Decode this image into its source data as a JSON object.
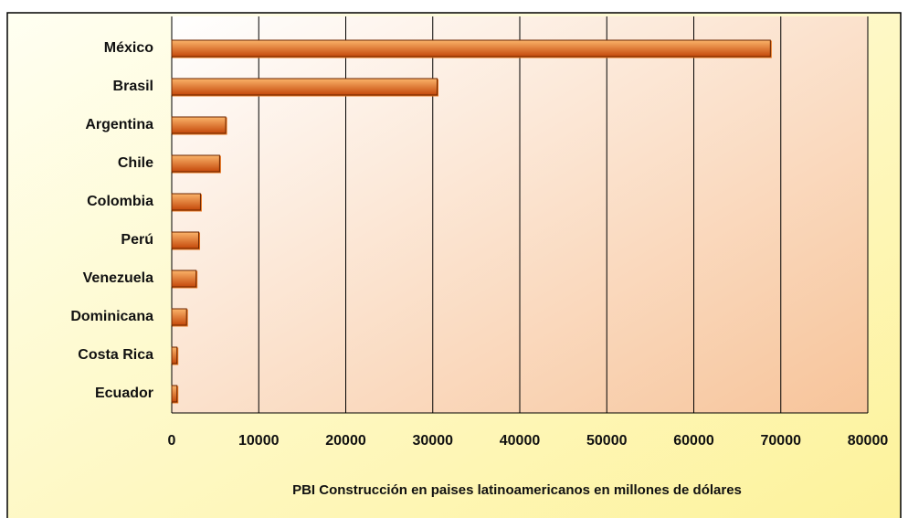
{
  "chart_data": {
    "type": "hbar",
    "categories": [
      "México",
      "Brasil",
      "Argentina",
      "Chile",
      "Colombia",
      "Perú",
      "Venezuela",
      "Dominicana",
      "Costa Rica",
      "Ecuador"
    ],
    "values": [
      68800,
      30500,
      6200,
      5500,
      3300,
      3100,
      2800,
      1700,
      600,
      600
    ],
    "color": "#e8731c",
    "xlabel": "PBI Construcción en paises latinoamericanos en millones de dólares",
    "xlim": [
      0,
      80000
    ],
    "xticks": [
      0,
      10000,
      20000,
      30000,
      40000,
      50000,
      60000,
      70000,
      80000
    ],
    "grid": true
  }
}
